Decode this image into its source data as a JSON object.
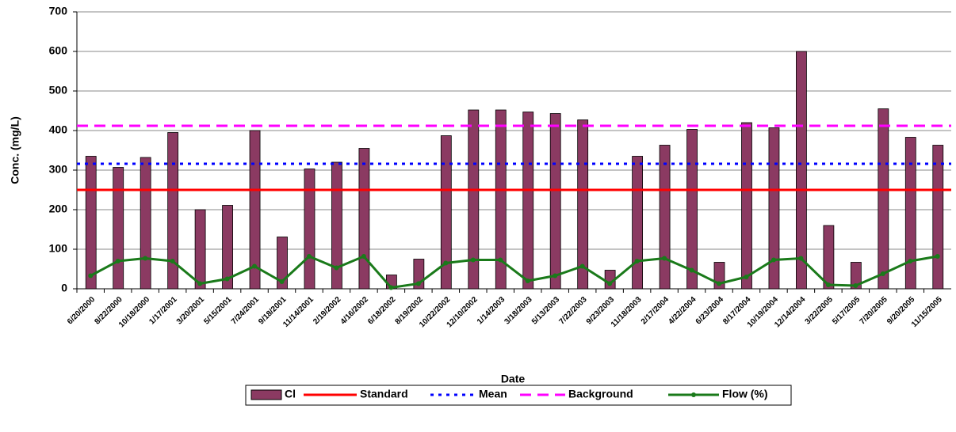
{
  "chart_data": {
    "type": "bar",
    "xlabel": "Date",
    "ylabel": "Conc. (mg/L)",
    "categories": [
      "6/20/2000",
      "8/22/2000",
      "10/18/2000",
      "1/17/2001",
      "3/20/2001",
      "5/15/2001",
      "7/24/2001",
      "9/18/2001",
      "11/14/2001",
      "2/19/2002",
      "4/16/2002",
      "6/18/2002",
      "8/19/2002",
      "10/22/2002",
      "12/10/2002",
      "1/14/2003",
      "3/18/2003",
      "5/13/2003",
      "7/22/2003",
      "9/23/2003",
      "11/18/2003",
      "2/17/2004",
      "4/22/2004",
      "6/23/2004",
      "8/17/2004",
      "10/19/2004",
      "12/14/2004",
      "3/22/2005",
      "5/17/2005",
      "7/20/2005",
      "9/20/2005",
      "11/15/2005"
    ],
    "series": [
      {
        "name": "Cl",
        "type": "bar",
        "color": "#8b3a62",
        "values": [
          335,
          307,
          332,
          395,
          200,
          211,
          400,
          131,
          303,
          320,
          355,
          35,
          75,
          387,
          452,
          452,
          447,
          443,
          427,
          47,
          335,
          363,
          403,
          67,
          420,
          407,
          600,
          160,
          67,
          455,
          383,
          363
        ]
      },
      {
        "name": "Standard",
        "type": "hline",
        "color": "#ff0000",
        "dash": "solid",
        "value": 250
      },
      {
        "name": "Mean",
        "type": "hline",
        "color": "#0000ff",
        "dash": "dotted",
        "value": 316
      },
      {
        "name": "Background",
        "type": "hline",
        "color": "#ff00ff",
        "dash": "dashed",
        "value": 412
      },
      {
        "name": "Flow (%)",
        "type": "line",
        "color": "#1a7a1a",
        "values": [
          33,
          70,
          77,
          70,
          13,
          25,
          57,
          18,
          82,
          53,
          82,
          3,
          13,
          65,
          73,
          73,
          20,
          33,
          57,
          13,
          70,
          77,
          47,
          13,
          30,
          73,
          77,
          10,
          8,
          38,
          70,
          82
        ]
      }
    ],
    "ylim": [
      0,
      700
    ],
    "yticks": [
      0,
      100,
      200,
      300,
      400,
      500,
      600,
      700
    ],
    "grid": true,
    "legend": "bottom"
  }
}
